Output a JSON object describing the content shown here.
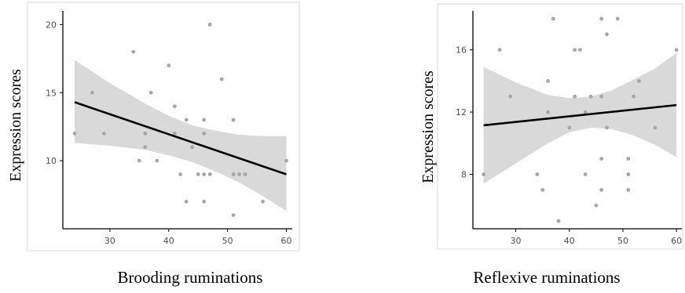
{
  "chart_data": [
    {
      "type": "scatter",
      "ylabel": "Expression scores",
      "xlabel": "Brooding ruminations",
      "xlim": [
        22,
        61
      ],
      "ylim": [
        5,
        21
      ],
      "xticks": [
        30,
        40,
        50,
        60
      ],
      "yticks": [
        10,
        15,
        20
      ],
      "grid": false,
      "points": [
        [
          24,
          12
        ],
        [
          27,
          15
        ],
        [
          29,
          12
        ],
        [
          34,
          18
        ],
        [
          35,
          10
        ],
        [
          36,
          12
        ],
        [
          36,
          11
        ],
        [
          37,
          15
        ],
        [
          38,
          10
        ],
        [
          40,
          17
        ],
        [
          41,
          14
        ],
        [
          41,
          12
        ],
        [
          42,
          9
        ],
        [
          43,
          13
        ],
        [
          43,
          7
        ],
        [
          44,
          11
        ],
        [
          45,
          9
        ],
        [
          46,
          9
        ],
        [
          46,
          13
        ],
        [
          46,
          12
        ],
        [
          46,
          7
        ],
        [
          47,
          20
        ],
        [
          47,
          9
        ],
        [
          49,
          16
        ],
        [
          51,
          13
        ],
        [
          51,
          9
        ],
        [
          51,
          6
        ],
        [
          52,
          9
        ],
        [
          53,
          9
        ],
        [
          56,
          7
        ],
        [
          60,
          10
        ]
      ],
      "fit_line": {
        "x": [
          24,
          60
        ],
        "y": [
          14.3,
          9.0
        ]
      },
      "confidence_band": {
        "x": [
          24,
          30,
          36,
          40,
          44,
          48,
          52,
          56,
          60
        ],
        "upper": [
          17.4,
          15.7,
          14.2,
          13.3,
          12.6,
          12.2,
          11.9,
          11.8,
          11.8
        ],
        "lower": [
          11.3,
          11.1,
          10.8,
          10.4,
          9.9,
          9.2,
          8.4,
          7.4,
          6.3
        ]
      },
      "colors": {
        "points": "#a6a6a6",
        "line": "#000000",
        "band": "#d9d9d9"
      }
    },
    {
      "type": "scatter",
      "ylabel": "Expression scores",
      "xlabel": "Reflexive ruminations",
      "xlim": [
        22,
        61
      ],
      "ylim": [
        4.5,
        18.5
      ],
      "xticks": [
        30,
        40,
        50,
        60
      ],
      "yticks": [
        8,
        12,
        16
      ],
      "grid": false,
      "points": [
        [
          24,
          8
        ],
        [
          27,
          16
        ],
        [
          29,
          13
        ],
        [
          34,
          8
        ],
        [
          35,
          7
        ],
        [
          36,
          14
        ],
        [
          36,
          12
        ],
        [
          37,
          18
        ],
        [
          38,
          5
        ],
        [
          40,
          11
        ],
        [
          41,
          13
        ],
        [
          41,
          16
        ],
        [
          42,
          16
        ],
        [
          43,
          8
        ],
        [
          43,
          12
        ],
        [
          44,
          13
        ],
        [
          45,
          6
        ],
        [
          46,
          7
        ],
        [
          46,
          9
        ],
        [
          46,
          13
        ],
        [
          46,
          18
        ],
        [
          47,
          17
        ],
        [
          47,
          11
        ],
        [
          49,
          18
        ],
        [
          51,
          9
        ],
        [
          51,
          8
        ],
        [
          51,
          7
        ],
        [
          52,
          13
        ],
        [
          53,
          14
        ],
        [
          56,
          11
        ],
        [
          60,
          16
        ]
      ],
      "fit_line": {
        "x": [
          24,
          60
        ],
        "y": [
          11.15,
          12.45
        ]
      },
      "confidence_band": {
        "x": [
          24,
          30,
          36,
          40,
          44,
          48,
          52,
          56,
          60
        ],
        "upper": [
          14.9,
          13.9,
          13.1,
          12.9,
          13.0,
          13.4,
          14.1,
          14.8,
          15.8
        ],
        "lower": [
          7.4,
          8.7,
          10.0,
          10.7,
          11.0,
          10.9,
          10.5,
          9.9,
          9.1
        ]
      },
      "colors": {
        "points": "#a6a6a6",
        "line": "#000000",
        "band": "#d9d9d9"
      }
    }
  ]
}
